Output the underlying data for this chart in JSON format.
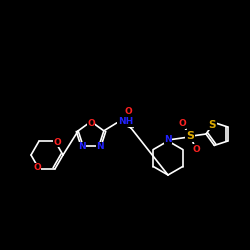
{
  "background_color": "#000000",
  "bond_color": "#ffffff",
  "atom_colors": {
    "N": "#2222ff",
    "O": "#ff2222",
    "S": "#ddaa00",
    "C": "#ffffff",
    "H": "#ffffff"
  },
  "figure_size": [
    2.5,
    2.5
  ],
  "dpi": 100,
  "lw": 1.2,
  "fontsize": 6.5
}
